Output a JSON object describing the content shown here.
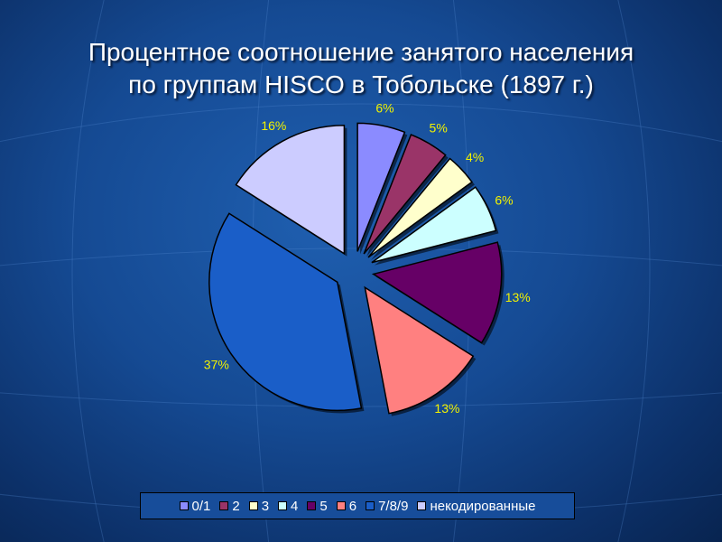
{
  "slide": {
    "title_line1": "Процентное соотношение занятого населения",
    "title_line2": "по группам HISCO в Тобольске (1897 г.)"
  },
  "chart_data": {
    "type": "pie",
    "title": "",
    "exploded": true,
    "legend_position": "bottom",
    "label_color": "#f2f200",
    "categories": [
      "0/1",
      "2",
      "3",
      "4",
      "5",
      "6",
      "7/8/9",
      "некодированные"
    ],
    "values": [
      6,
      5,
      4,
      6,
      13,
      13,
      37,
      16
    ],
    "labels": [
      "6%",
      "5%",
      "4%",
      "6%",
      "13%",
      "13%",
      "37%",
      "16%"
    ],
    "colors": [
      "#8b8bff",
      "#9a3468",
      "#ffffcc",
      "#ccffff",
      "#660066",
      "#ff8080",
      "#1a5ec8",
      "#ccccff"
    ]
  }
}
